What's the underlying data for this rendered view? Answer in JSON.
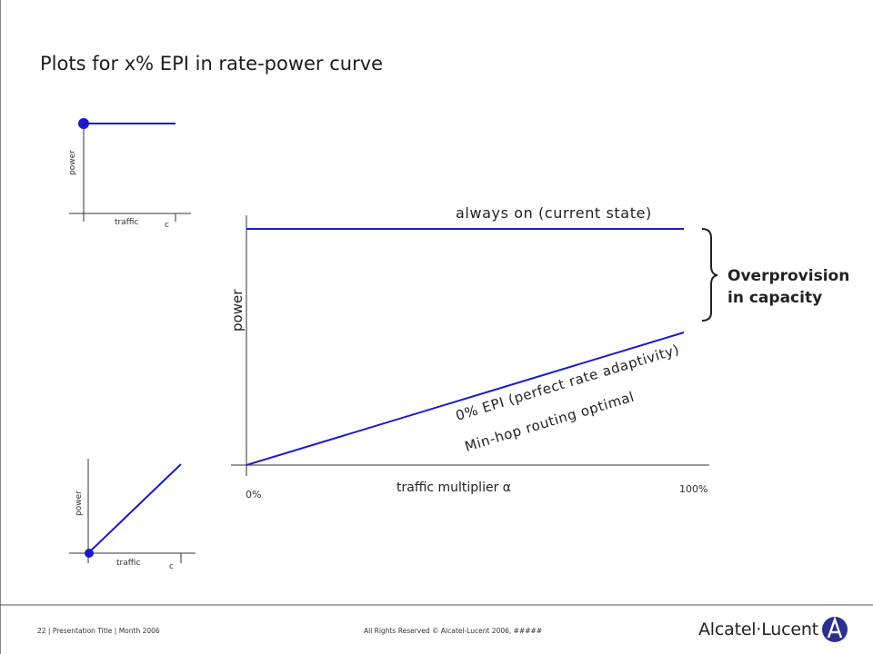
{
  "slide": {
    "title": "Plots for x% EPI in rate-power curve",
    "footer_left": "22 | Presentation Title | Month 2006",
    "footer_center": "All Rights Reserved © Alcatel-Lucent 2006, #####",
    "logo_text": "Alcatel·Lucent"
  },
  "mini_top": {
    "ylabel": "power",
    "xlabel": "traffic",
    "cap_label": "c"
  },
  "mini_bottom": {
    "ylabel": "power",
    "xlabel": "traffic",
    "cap_label": "c"
  },
  "main_chart": {
    "ylabel": "power",
    "xlabel": "traffic multiplier α",
    "tick_start": "0%",
    "tick_end": "100%",
    "always_on_label": "always on (current state)",
    "epi_label": "0% EPI (perfect rate adaptivity)",
    "minhop_label": "Min-hop routing optimal",
    "overprovision_line1": "Overprovision",
    "overprovision_line2": "in capacity"
  },
  "colors": {
    "series": "#1a1acc",
    "axis": "#333333"
  }
}
